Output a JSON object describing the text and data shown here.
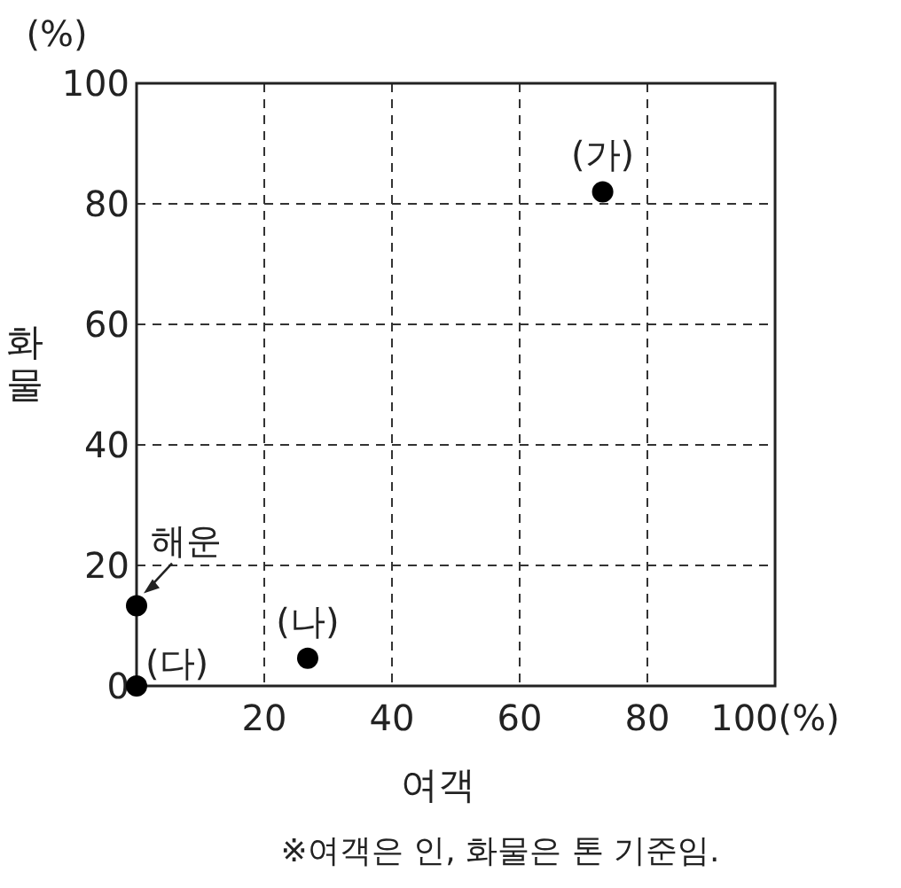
{
  "chart_data": {
    "type": "scatter",
    "xlabel": "여객",
    "ylabel": "화물",
    "xlim": [
      0,
      100
    ],
    "ylim": [
      0,
      100
    ],
    "xticks": [
      {
        "value": 0,
        "label": null
      },
      20,
      40,
      60,
      80,
      {
        "value": 100,
        "label": "100(%)"
      }
    ],
    "yticks": [
      0,
      20,
      40,
      60,
      80,
      100
    ],
    "grid": true,
    "marker": "circle",
    "color": "#000000",
    "x": [
      73,
      26.8,
      0,
      0
    ],
    "values": [
      82,
      4.6,
      0,
      13.3
    ],
    "annotations": [
      {
        "text": "(가)",
        "x": 73,
        "y": 82
      },
      {
        "text": "(나)",
        "x": 26.8,
        "y": 4.6
      },
      {
        "text": "(다)",
        "x": 0,
        "y": 0
      },
      {
        "text": "해운",
        "x": 0,
        "y": 13.3
      },
      "(%)",
      "※여객은 인, 화물은 톤 기준임."
    ]
  }
}
